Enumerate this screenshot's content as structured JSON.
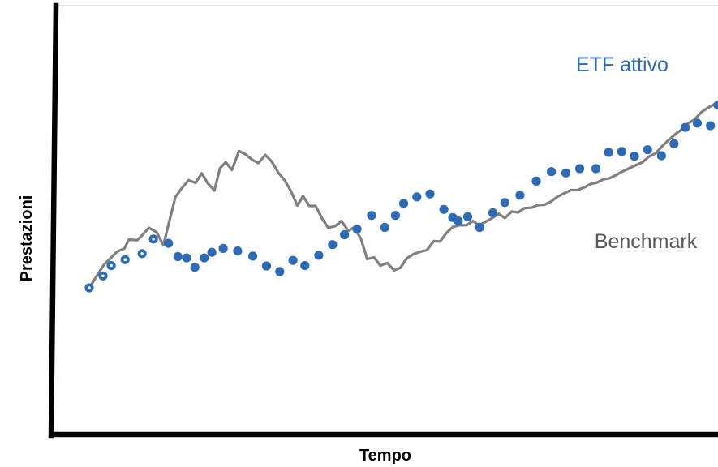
{
  "chart_data": {
    "type": "line",
    "title": "",
    "xlabel": "Tempo",
    "ylabel": "Prestazioni",
    "axis_ticks": false,
    "grid": false,
    "legend": "inline labels beside series",
    "y_range": [
      0,
      100
    ],
    "x_range": [
      0,
      100
    ],
    "colors": {
      "axis": "#000000",
      "frame": "#d9d9d9",
      "benchmark": "#7f7f7f",
      "etf": "#2e6bb4"
    },
    "series": [
      {
        "name": "Benchmark",
        "style": "line",
        "points": [
          [
            0,
            34.2
          ],
          [
            1.2,
            37.0
          ],
          [
            2.3,
            39.5
          ],
          [
            3.3,
            41.0
          ],
          [
            4.4,
            42.6
          ],
          [
            5.6,
            43.4
          ],
          [
            6.3,
            45.5
          ],
          [
            7.6,
            45.3
          ],
          [
            8.5,
            46.6
          ],
          [
            9.5,
            48.2
          ],
          [
            10.7,
            47.2
          ],
          [
            11.8,
            44.2
          ],
          [
            12.7,
            49.5
          ],
          [
            13.7,
            55.4
          ],
          [
            14.7,
            57.4
          ],
          [
            15.8,
            59.3
          ],
          [
            16.9,
            58.7
          ],
          [
            17.9,
            60.9
          ],
          [
            18.8,
            58.7
          ],
          [
            19.9,
            56.9
          ],
          [
            20.8,
            62.1
          ],
          [
            21.7,
            63.5
          ],
          [
            22.7,
            61.7
          ],
          [
            23.8,
            66.1
          ],
          [
            24.8,
            65.4
          ],
          [
            25.9,
            64.1
          ],
          [
            26.9,
            63.3
          ],
          [
            28.0,
            65.2
          ],
          [
            29.0,
            63.7
          ],
          [
            30.1,
            61.0
          ],
          [
            31.1,
            59.3
          ],
          [
            32.1,
            56.7
          ],
          [
            33.1,
            53.4
          ],
          [
            34.0,
            55.6
          ],
          [
            35.0,
            53.3
          ],
          [
            36.0,
            53.3
          ],
          [
            37.1,
            50.2
          ],
          [
            38.0,
            48.2
          ],
          [
            39.1,
            48.6
          ],
          [
            40.1,
            49.8
          ],
          [
            41.2,
            47.5
          ],
          [
            42.1,
            48.3
          ],
          [
            43.2,
            45.7
          ],
          [
            44.2,
            40.9
          ],
          [
            45.3,
            41.3
          ],
          [
            46.3,
            39.4
          ],
          [
            47.4,
            40.0
          ],
          [
            48.5,
            38.3
          ],
          [
            49.5,
            38.9
          ],
          [
            50.5,
            41.1
          ],
          [
            51.6,
            42.1
          ],
          [
            52.6,
            42.6
          ],
          [
            53.7,
            43.0
          ],
          [
            54.8,
            45.1
          ],
          [
            55.8,
            45.0
          ],
          [
            56.8,
            47.0
          ],
          [
            57.8,
            48.4
          ],
          [
            58.9,
            48.8
          ],
          [
            60.0,
            48.8
          ],
          [
            61.0,
            49.8
          ],
          [
            62.0,
            48.8
          ],
          [
            63.0,
            49.6
          ],
          [
            64.1,
            50.5
          ],
          [
            65.1,
            51.5
          ],
          [
            66.1,
            50.5
          ],
          [
            67.2,
            52.0
          ],
          [
            68.2,
            51.8
          ],
          [
            69.2,
            52.8
          ],
          [
            70.3,
            52.9
          ],
          [
            71.3,
            53.5
          ],
          [
            72.4,
            53.6
          ],
          [
            73.4,
            54.3
          ],
          [
            74.5,
            55.5
          ],
          [
            75.6,
            56.3
          ],
          [
            76.6,
            57.0
          ],
          [
            77.6,
            57.0
          ],
          [
            78.7,
            57.6
          ],
          [
            79.7,
            58.4
          ],
          [
            80.8,
            58.8
          ],
          [
            81.8,
            59.5
          ],
          [
            82.8,
            59.8
          ],
          [
            83.9,
            60.6
          ],
          [
            84.9,
            61.4
          ],
          [
            85.9,
            62.1
          ],
          [
            86.9,
            62.8
          ],
          [
            88.0,
            63.5
          ],
          [
            89.0,
            64.8
          ],
          [
            90.1,
            65.6
          ],
          [
            91.1,
            67.2
          ],
          [
            92.1,
            68.6
          ],
          [
            93.2,
            70.0
          ],
          [
            94.2,
            71.1
          ],
          [
            95.2,
            72.5
          ],
          [
            96.3,
            73.5
          ],
          [
            97.3,
            75.1
          ],
          [
            98.3,
            76.1
          ],
          [
            99.4,
            77.0
          ],
          [
            100,
            77.6
          ]
        ]
      },
      {
        "name": "ETF attivo",
        "style": "markers",
        "points": [
          [
            0,
            34.2
          ],
          [
            2.2,
            37.0
          ],
          [
            3.5,
            39.4
          ],
          [
            5.7,
            40.8
          ],
          [
            8.4,
            42.2
          ],
          [
            10.2,
            45.6
          ],
          [
            12.6,
            44.6
          ],
          [
            14.1,
            41.5
          ],
          [
            15.5,
            41.2
          ],
          [
            16.8,
            39.0
          ],
          [
            18.3,
            41.2
          ],
          [
            19.5,
            42.5
          ],
          [
            21.3,
            43.4
          ],
          [
            23.6,
            42.8
          ],
          [
            26.0,
            41.6
          ],
          [
            28.2,
            39.3
          ],
          [
            30.3,
            38.0
          ],
          [
            32.4,
            40.6
          ],
          [
            34.3,
            39.4
          ],
          [
            36.5,
            41.8
          ],
          [
            38.7,
            44.3
          ],
          [
            40.6,
            46.6
          ],
          [
            42.6,
            47.9
          ],
          [
            44.9,
            51.1
          ],
          [
            47.0,
            48.3
          ],
          [
            48.7,
            51.1
          ],
          [
            50.0,
            53.9
          ],
          [
            52.1,
            55.4
          ],
          [
            54.2,
            56.1
          ],
          [
            56.4,
            52.5
          ],
          [
            57.8,
            50.6
          ],
          [
            58.7,
            49.8
          ],
          [
            60.2,
            50.8
          ],
          [
            62.1,
            48.3
          ],
          [
            64.2,
            51.7
          ],
          [
            66.1,
            54.1
          ],
          [
            68.5,
            55.8
          ],
          [
            71.1,
            59.1
          ],
          [
            73.5,
            61.3
          ],
          [
            75.8,
            61.0
          ],
          [
            78.0,
            62.0
          ],
          [
            80.6,
            62.0
          ],
          [
            82.6,
            65.8
          ],
          [
            84.7,
            66.0
          ],
          [
            86.7,
            64.9
          ],
          [
            88.8,
            66.4
          ],
          [
            91.0,
            65.0
          ],
          [
            93.0,
            67.8
          ],
          [
            94.8,
            71.6
          ],
          [
            96.7,
            72.6
          ],
          [
            98.8,
            72.0
          ],
          [
            100,
            76.8
          ],
          [
            102,
            80.6
          ]
        ]
      }
    ],
    "annotations": [
      {
        "text": "ETF attivo",
        "series": "ETF attivo"
      },
      {
        "text": "Benchmark",
        "series": "Benchmark"
      }
    ]
  }
}
